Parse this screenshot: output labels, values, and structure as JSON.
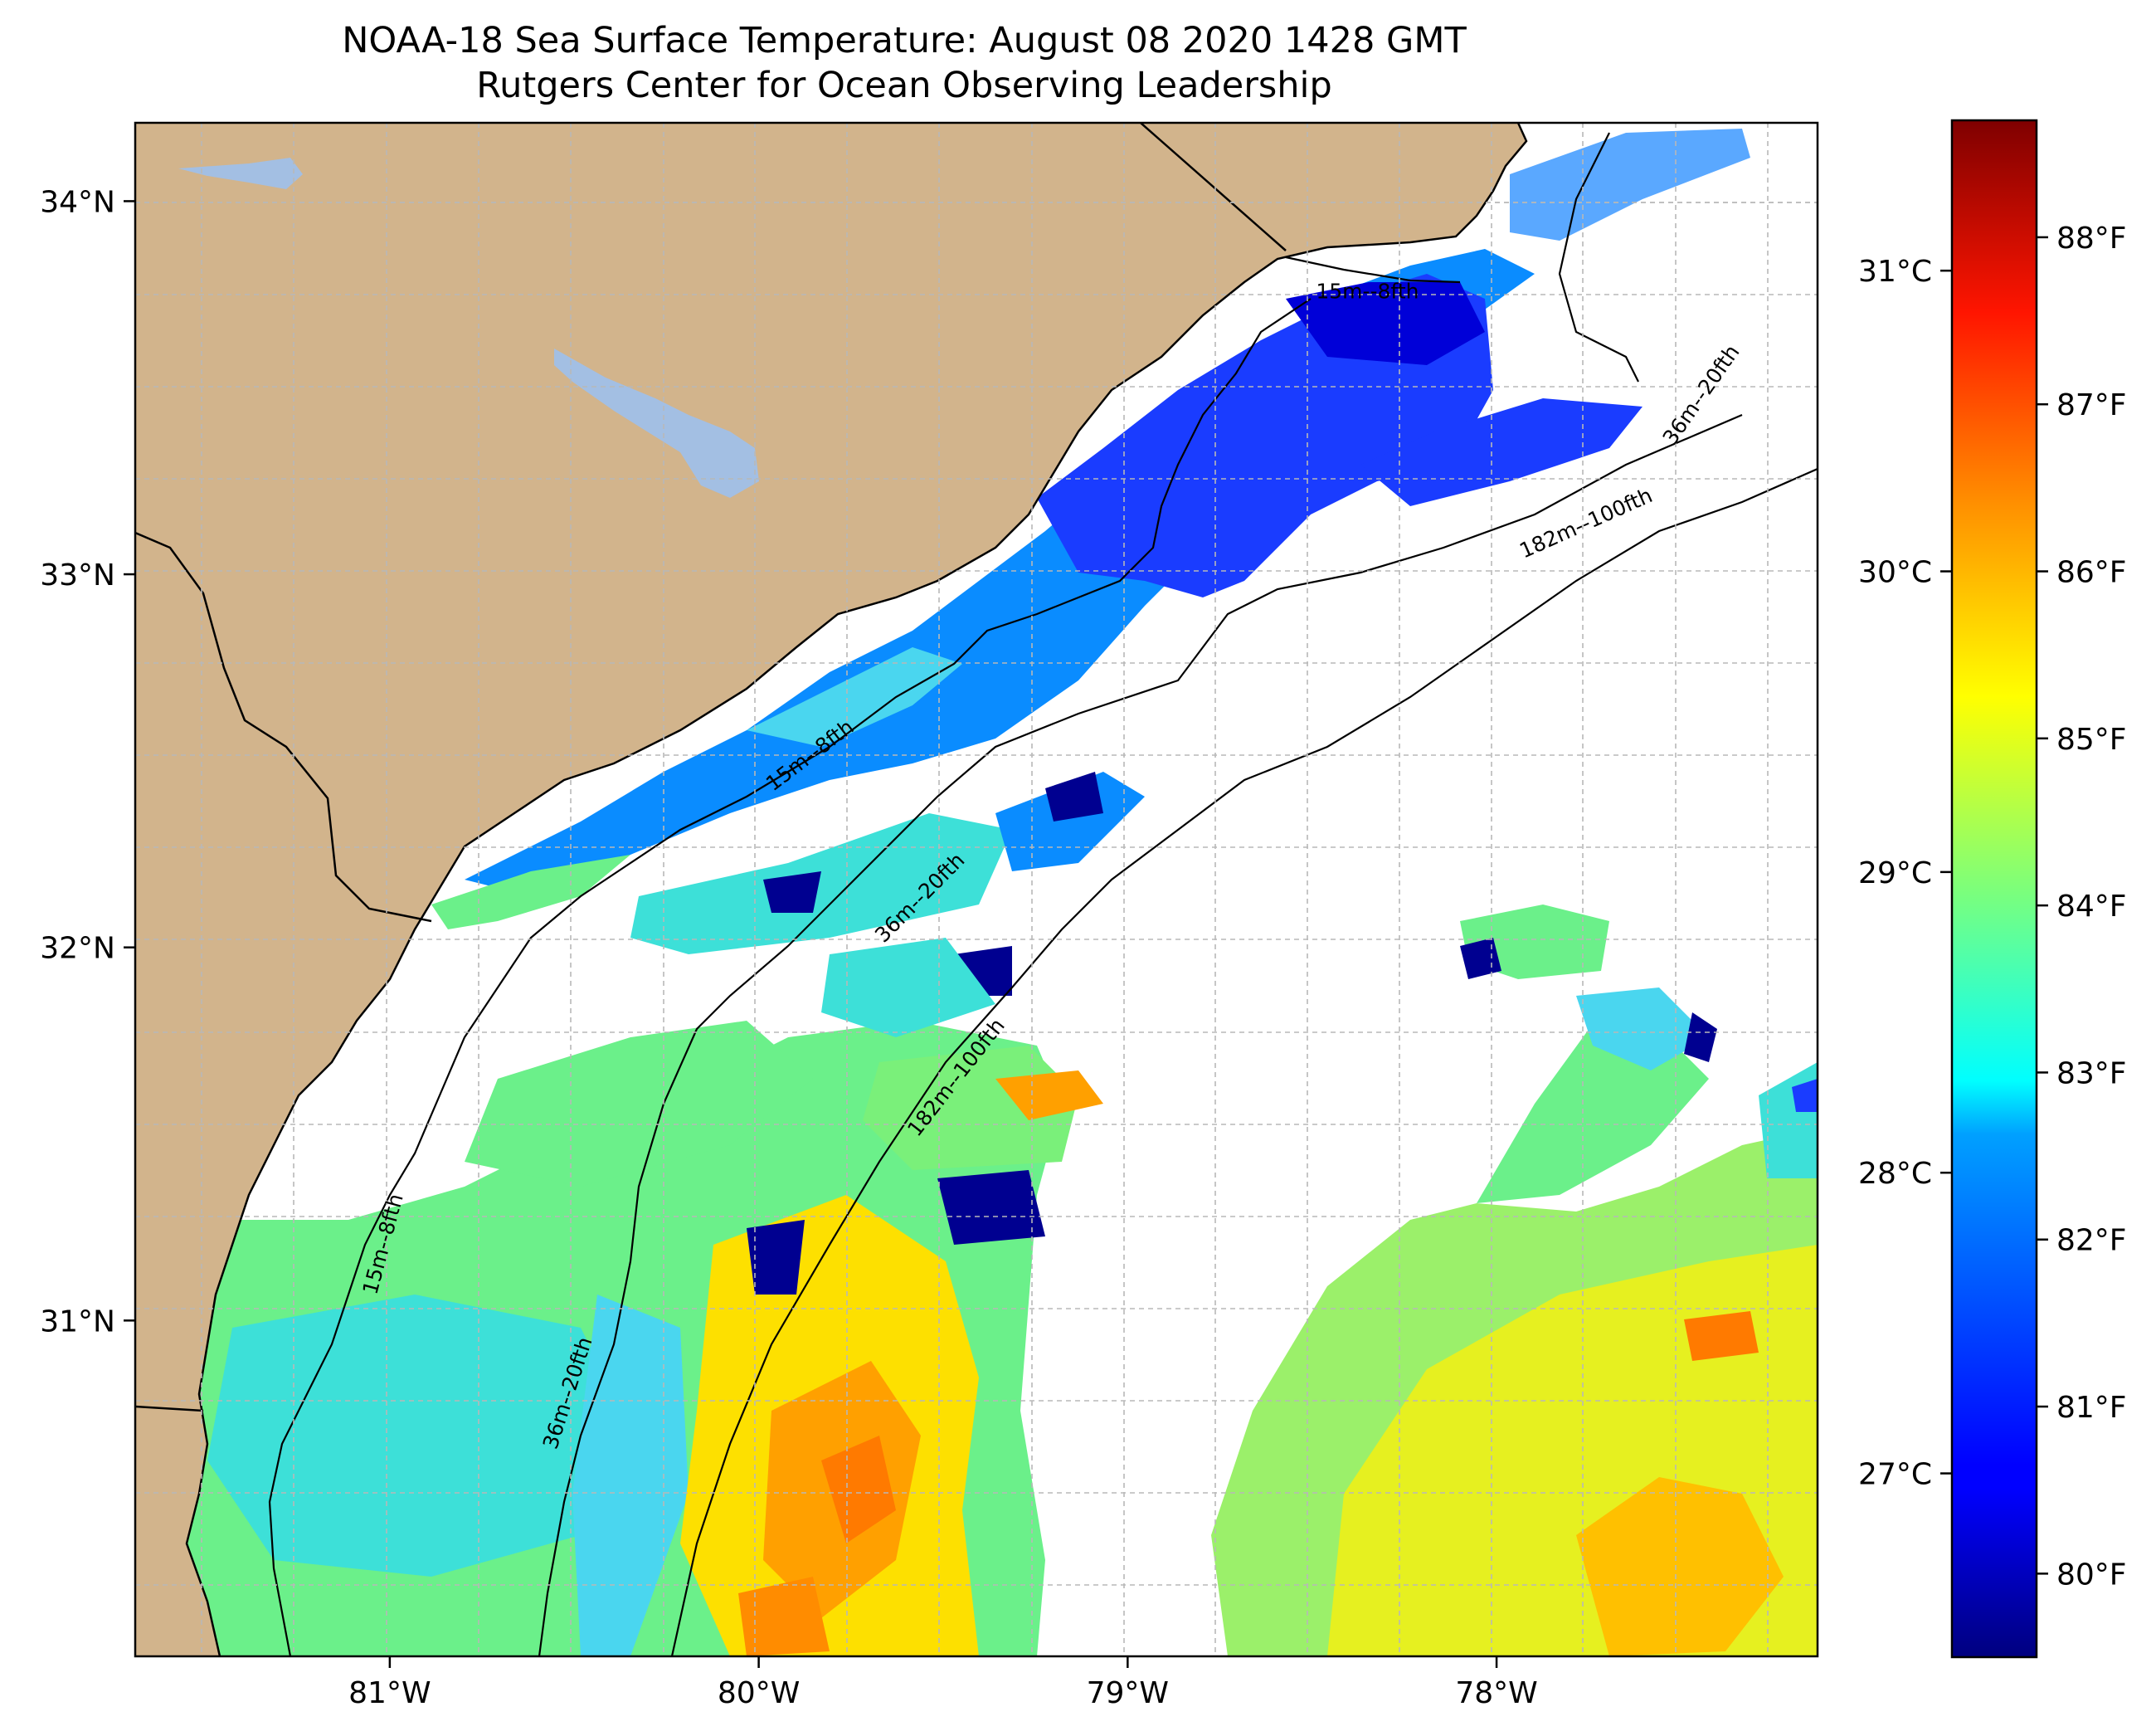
{
  "title": {
    "line1": "NOAA-18 Sea Surface Temperature: August 08 2020 1428 GMT",
    "line2": "Rutgers Center for Ocean Observing Leadership"
  },
  "map": {
    "lon_range": [
      -81.69,
      -77.13
    ],
    "lat_range": [
      30.1,
      34.21
    ],
    "x_ticks": [
      {
        "lon": -81,
        "label": "81°W"
      },
      {
        "lon": -80,
        "label": "80°W"
      },
      {
        "lon": -79,
        "label": "79°W"
      },
      {
        "lon": -78,
        "label": "78°W"
      }
    ],
    "y_ticks": [
      {
        "lat": 34,
        "label": "34°N"
      },
      {
        "lat": 33,
        "label": "33°N"
      },
      {
        "lat": 32,
        "label": "32°N"
      },
      {
        "lat": 31,
        "label": "31°N"
      }
    ],
    "gridlines": true,
    "grid_style": "dashed",
    "contour_labels": [
      {
        "lon": -78.35,
        "lat": 33.74,
        "rotation": 0,
        "text": "15m--8fth"
      },
      {
        "lon": -79.85,
        "lat": 32.5,
        "rotation": -37,
        "text": "15m--8fth"
      },
      {
        "lon": -81.0,
        "lat": 31.2,
        "rotation": -75,
        "text": "15m--8fth"
      },
      {
        "lon": -77.43,
        "lat": 33.47,
        "rotation": -55,
        "text": "36m--20fth"
      },
      {
        "lon": -79.55,
        "lat": 32.12,
        "rotation": -45,
        "text": "36m--20fth"
      },
      {
        "lon": -80.5,
        "lat": 30.8,
        "rotation": -72,
        "text": "36m--20fth"
      },
      {
        "lon": -77.75,
        "lat": 33.12,
        "rotation": -24,
        "text": "182m--100fth"
      },
      {
        "lon": -79.45,
        "lat": 31.64,
        "rotation": -52,
        "text": "182m--100fth"
      }
    ],
    "colors": {
      "land": "#d2b48c",
      "lakes": "#a3bfe3",
      "coastline": "#000000",
      "missing_data": "#ffffff"
    }
  },
  "colorbar": {
    "colormap": "jet",
    "f_range": [
      79.5,
      88.7
    ],
    "f_ticks": [
      {
        "value": 80,
        "label": "80°F"
      },
      {
        "value": 81,
        "label": "81°F"
      },
      {
        "value": 82,
        "label": "82°F"
      },
      {
        "value": 83,
        "label": "83°F"
      },
      {
        "value": 84,
        "label": "84°F"
      },
      {
        "value": 85,
        "label": "85°F"
      },
      {
        "value": 86,
        "label": "86°F"
      },
      {
        "value": 87,
        "label": "87°F"
      },
      {
        "value": 88,
        "label": "88°F"
      }
    ],
    "c_ticks": [
      {
        "value": 27,
        "label": "27°C"
      },
      {
        "value": 28,
        "label": "28°C"
      },
      {
        "value": 29,
        "label": "29°C"
      },
      {
        "value": 30,
        "label": "30°C"
      },
      {
        "value": 31,
        "label": "31°C"
      }
    ]
  }
}
